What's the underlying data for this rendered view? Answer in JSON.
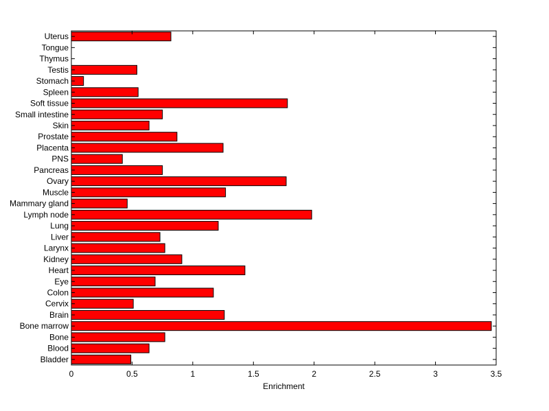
{
  "chart_data": {
    "type": "bar",
    "orientation": "horizontal",
    "title": "",
    "xlabel": "Enrichment",
    "ylabel": "",
    "xlim": [
      0,
      3.5
    ],
    "xticks": [
      "0",
      "0.5",
      "1",
      "1.5",
      "2",
      "2.5",
      "3",
      "3.5"
    ],
    "grid": false,
    "legend": "none",
    "bar_color": "#ff0000",
    "categories": [
      "Bladder",
      "Blood",
      "Bone",
      "Bone marrow",
      "Brain",
      "Cervix",
      "Colon",
      "Eye",
      "Heart",
      "Kidney",
      "Larynx",
      "Liver",
      "Lung",
      "Lymph node",
      "Mammary gland",
      "Muscle",
      "Ovary",
      "Pancreas",
      "PNS",
      "Placenta",
      "Prostate",
      "Skin",
      "Small intestine",
      "Soft tissue",
      "Spleen",
      "Stomach",
      "Testis",
      "Thymus",
      "Tongue",
      "Uterus"
    ],
    "values": [
      0.49,
      0.64,
      0.77,
      3.46,
      1.26,
      0.51,
      1.17,
      0.69,
      1.43,
      0.91,
      0.77,
      0.73,
      1.21,
      1.98,
      0.46,
      1.27,
      1.77,
      0.75,
      0.42,
      1.25,
      0.87,
      0.64,
      0.75,
      1.78,
      0.55,
      0.1,
      0.54,
      0,
      0,
      0.82
    ]
  }
}
